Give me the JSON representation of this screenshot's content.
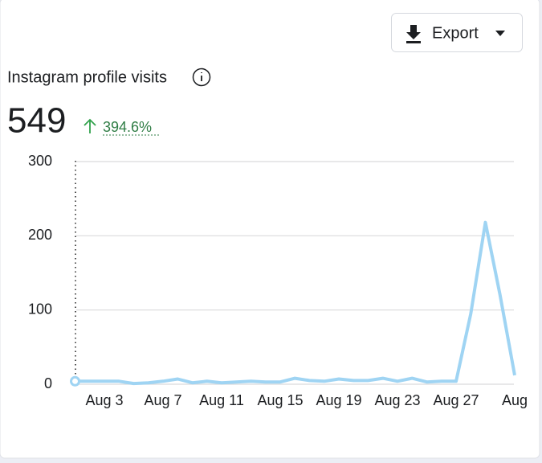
{
  "header": {
    "export": "Export"
  },
  "chart_data": {
    "type": "line",
    "title": "Instagram profile visits",
    "total": 549,
    "change": "394.6%",
    "categories": [
      null,
      null,
      "Aug 3",
      null,
      null,
      null,
      "Aug 7",
      null,
      null,
      null,
      "Aug 11",
      null,
      null,
      null,
      "Aug 15",
      null,
      null,
      null,
      "Aug 19",
      null,
      null,
      null,
      "Aug 23",
      null,
      null,
      null,
      "Aug 27",
      null,
      null,
      null,
      "Aug"
    ],
    "values": [
      4,
      4,
      4,
      4,
      1,
      2,
      4,
      7,
      2,
      4,
      2,
      3,
      4,
      3,
      3,
      8,
      5,
      4,
      7,
      5,
      5,
      8,
      4,
      8,
      3,
      4,
      4,
      95,
      218,
      120,
      12
    ],
    "color": "#9fd4f3",
    "ylim": [
      0,
      300
    ],
    "yticks": [
      0,
      100,
      200,
      300
    ],
    "grid": true
  }
}
